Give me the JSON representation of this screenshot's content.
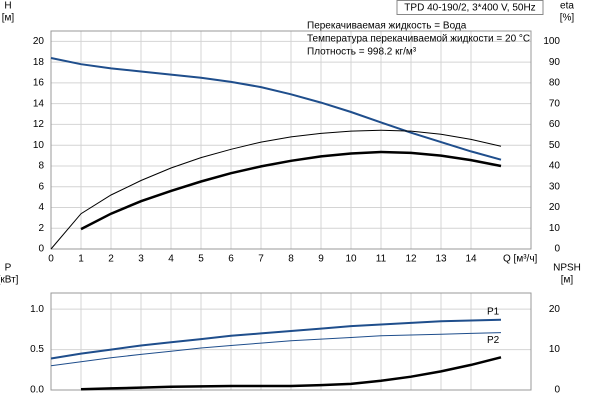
{
  "chart_data": [
    {
      "type": "line",
      "title": "TPD 40-190/2, 3*400 V, 50Hz",
      "annotations": [
        "Перекачиваемая жидкость = Вода",
        "Температура перекачиваемой жидкости = 20 °C",
        "Плотность = 998.2 кг/м³"
      ],
      "ylabel": "H",
      "yunit": "[м]",
      "y2label": "eta",
      "y2unit": "[%]",
      "xlabel": "Q [м³/ч]",
      "x": [
        0,
        1,
        2,
        3,
        4,
        5,
        6,
        7,
        8,
        9,
        10,
        11,
        12,
        13,
        14,
        15
      ],
      "xlim": [
        0,
        16
      ],
      "xticks": [
        0,
        1,
        2,
        3,
        4,
        5,
        6,
        7,
        8,
        9,
        10,
        11,
        12,
        13,
        14
      ],
      "ylim": [
        0,
        21
      ],
      "yticks": [
        0,
        2,
        4,
        6,
        8,
        10,
        12,
        14,
        16,
        18,
        20
      ],
      "y2lim": [
        0,
        105
      ],
      "y2ticks": [
        0,
        10,
        20,
        30,
        40,
        50,
        60,
        70,
        80,
        90,
        100
      ],
      "grid": true,
      "series": [
        {
          "color": "#1f4e8c",
          "width": 2,
          "values": [
            18.4,
            17.8,
            17.4,
            17.1,
            16.8,
            16.5,
            16.1,
            15.6,
            14.9,
            14.1,
            13.2,
            12.2,
            11.2,
            10.3,
            9.4,
            8.6
          ]
        },
        {
          "color": "#000000",
          "width": 1,
          "axis": "y2",
          "values": [
            0,
            17,
            26,
            33,
            39,
            44,
            48,
            51.5,
            54,
            55.7,
            56.8,
            57.2,
            56.8,
            55.3,
            52.8,
            49.5
          ]
        },
        {
          "color": "#000000",
          "width": 2.5,
          "axis": "y2",
          "values": [
            null,
            9.6,
            17,
            23,
            28,
            32.5,
            36.5,
            39.8,
            42.5,
            44.6,
            46,
            46.7,
            46.3,
            45,
            42.8,
            40
          ]
        }
      ]
    },
    {
      "type": "line",
      "ylabel": "P",
      "yunit": "[кВт]",
      "y2label": "NPSH",
      "y2unit": "[м]",
      "x": [
        0,
        1,
        2,
        3,
        4,
        5,
        6,
        7,
        8,
        9,
        10,
        11,
        12,
        13,
        14,
        15
      ],
      "ylim": [
        0,
        1.2
      ],
      "yticks": [
        {
          "value": 0,
          "label": "0.0"
        },
        {
          "value": 0.5,
          "label": "0.5"
        },
        {
          "value": 1,
          "label": "1.0"
        }
      ],
      "y2lim": [
        0,
        24
      ],
      "y2ticks": [
        0,
        10,
        20
      ],
      "grid": true,
      "series": [
        {
          "name": "P1",
          "color": "#1f4e8c",
          "width": 2,
          "values": [
            0.39,
            0.45,
            0.5,
            0.55,
            0.59,
            0.63,
            0.67,
            0.7,
            0.73,
            0.76,
            0.79,
            0.81,
            0.83,
            0.85,
            0.86,
            0.87
          ]
        },
        {
          "name": "P2",
          "color": "#1f4e8c",
          "width": 1,
          "values": [
            0.3,
            0.35,
            0.4,
            0.44,
            0.48,
            0.52,
            0.55,
            0.58,
            0.61,
            0.63,
            0.65,
            0.67,
            0.68,
            0.69,
            0.7,
            0.71
          ]
        },
        {
          "color": "#000000",
          "width": 2.5,
          "axis": "y2",
          "values": [
            null,
            0.2,
            0.4,
            0.6,
            0.8,
            0.9,
            1,
            1,
            1,
            1.2,
            1.5,
            2.3,
            3.3,
            4.6,
            6.2,
            8.1
          ]
        }
      ]
    }
  ]
}
